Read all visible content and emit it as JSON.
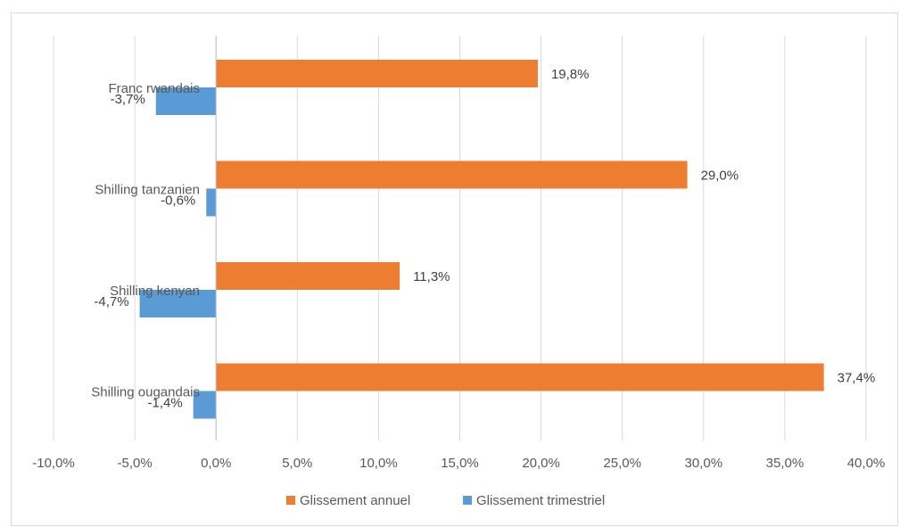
{
  "chart_data": {
    "type": "bar",
    "orientation": "horizontal",
    "categories": [
      "Franc rwandais",
      "Shilling tanzanien",
      "Shilling kenyan",
      "Shilling ougandais"
    ],
    "series": [
      {
        "name": "Glissement annuel",
        "color": "#ed7d31",
        "values": [
          19.8,
          29.0,
          11.3,
          37.4
        ],
        "labels": [
          "19,8%",
          "29,0%",
          "11,3%",
          "37,4%"
        ]
      },
      {
        "name": "Glissement trimestriel",
        "color": "#5b9bd5",
        "values": [
          -3.7,
          -0.6,
          -4.7,
          -1.4
        ],
        "labels": [
          "-3,7%",
          "-0,6%",
          "-4,7%",
          "-1,4%"
        ]
      }
    ],
    "xlim": [
      -10,
      40
    ],
    "x_ticks": [
      -10,
      -5,
      0,
      5,
      10,
      15,
      20,
      25,
      30,
      35,
      40
    ],
    "x_tick_labels": [
      "-10,0%",
      "-5,0%",
      "0,0%",
      "5,0%",
      "10,0%",
      "15,0%",
      "20,0%",
      "25,0%",
      "30,0%",
      "35,0%",
      "40,0%"
    ],
    "grid": "vertical",
    "legend_position": "bottom",
    "title": "",
    "xlabel": "",
    "ylabel": ""
  }
}
